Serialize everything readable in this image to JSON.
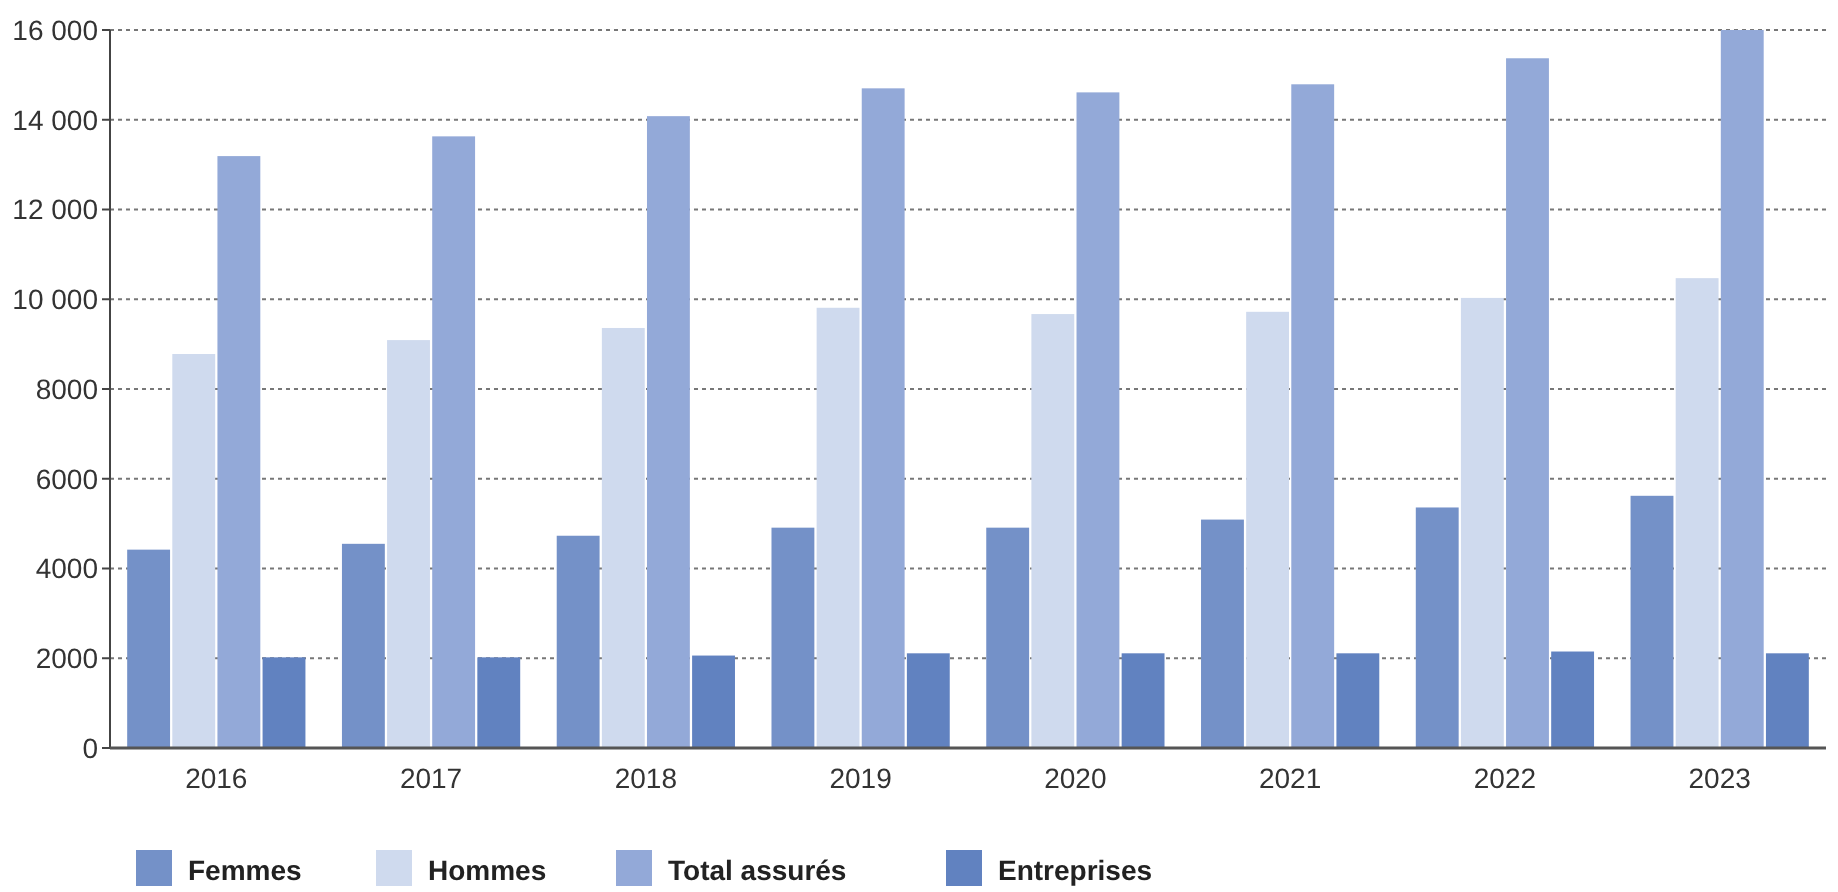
{
  "chart_data": {
    "type": "bar",
    "categories": [
      "2016",
      "2017",
      "2018",
      "2019",
      "2020",
      "2021",
      "2022",
      "2023"
    ],
    "series": [
      {
        "name": "Femmes",
        "color": "#7491c8",
        "values": [
          4420,
          4550,
          4730,
          4910,
          4910,
          5090,
          5360,
          5620
        ]
      },
      {
        "name": "Hommes",
        "color": "#cfdaee",
        "values": [
          8780,
          9090,
          9360,
          9810,
          9670,
          9720,
          10030,
          10470
        ]
      },
      {
        "name": "Total assurés",
        "color": "#93a9d8",
        "values": [
          13190,
          13630,
          14080,
          14700,
          14610,
          14790,
          15370,
          16000
        ]
      },
      {
        "name": "Entreprises",
        "color": "#6182c0",
        "values": [
          2020,
          2020,
          2060,
          2110,
          2110,
          2110,
          2150,
          2110
        ]
      }
    ],
    "ylim": [
      0,
      16000
    ],
    "yticks": [
      0,
      2000,
      4000,
      6000,
      8000,
      {
        "value": 10000,
        "label": "10 000"
      },
      {
        "value": 12000,
        "label": "12 000"
      },
      {
        "value": 14000,
        "label": "14 000"
      },
      {
        "value": 16000,
        "label": "16 000"
      }
    ],
    "grid": "y",
    "legend": "bottom"
  }
}
